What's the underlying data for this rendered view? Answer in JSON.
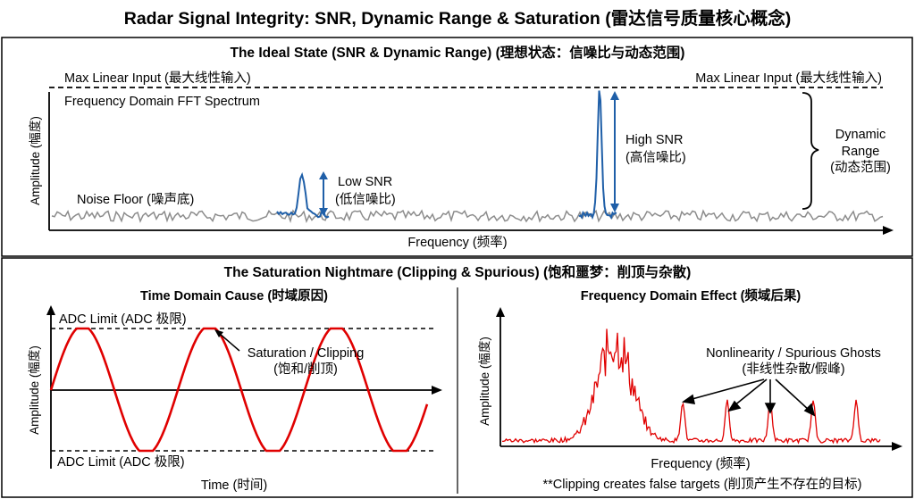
{
  "title": "Radar Signal Integrity: SNR, Dynamic Range & Saturation (雷达信号质量核心概念)",
  "top_panel": {
    "heading": "The Ideal State (SNR & Dynamic Range) (理想状态：信噪比与动态范围)",
    "max_linear_left": "Max Linear Input (最大线性输入)",
    "max_linear_right": "Max Linear Input (最大线性输入)",
    "spectrum_label": "Frequency Domain FFT Spectrum",
    "y_axis": "Amplitude (幅度)",
    "x_axis": "Frequency (频率)",
    "noise_floor": "Noise Floor (噪声底)",
    "low_snr": {
      "line1": "Low SNR",
      "line2": "(低信噪比)"
    },
    "high_snr": {
      "line1": "High SNR",
      "line2": "(高信噪比)"
    },
    "dynamic_range": {
      "line1": "Dynamic",
      "line2": "Range",
      "line3": "(动态范围)"
    }
  },
  "bottom_panel": {
    "heading": "The Saturation Nightmare (Clipping & Spurious) (饱和噩梦：削顶与杂散)",
    "left": {
      "heading": "Time Domain Cause (时域原因)",
      "adc_top": "ADC Limit (ADC 极限)",
      "adc_bottom": "ADC Limit (ADC 极限)",
      "y_axis": "Amplitude (幅度)",
      "x_axis": "Time (时间)",
      "clip": {
        "line1": "Saturation / Clipping",
        "line2": "(饱和/削顶)"
      }
    },
    "right": {
      "heading": "Frequency Domain Effect (频域后果)",
      "y_axis": "Amplitude (幅度)",
      "x_axis": "Frequency (频率)",
      "spurs": {
        "line1": "Nonlinearity / Spurious Ghosts",
        "line2": "(非线性杂散/假峰)"
      },
      "note": "**Clipping creates false targets (削顶产生不存在的目标)"
    }
  },
  "colors": {
    "noise": "#8c8c8c",
    "signal": "#1f5fa8",
    "sat": "#e00000"
  }
}
